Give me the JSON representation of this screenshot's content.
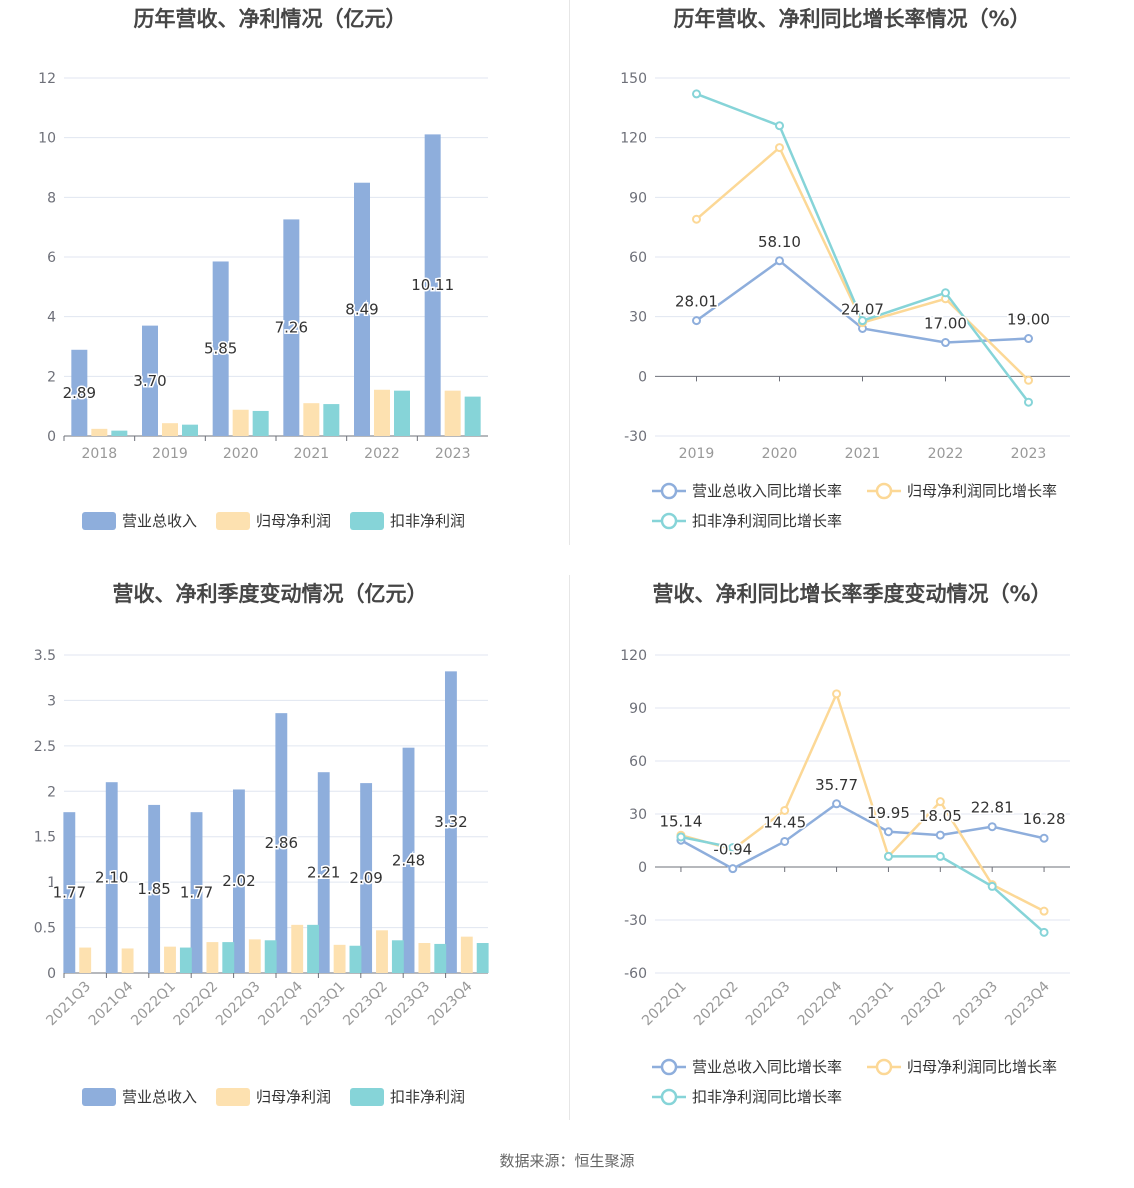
{
  "footer": {
    "source": "数据来源：恒生聚源"
  },
  "colors": {
    "revenue": "#8eaedc",
    "net_profit": "#fde1b0",
    "deducted_profit": "#86d4d8",
    "grid": "#e0e6f0",
    "axis": "#6e7079",
    "title": "#464646",
    "legend_text": "#333333"
  },
  "legend_bar": [
    "营业总收入",
    "归母净利润",
    "扣非净利润"
  ],
  "legend_line": [
    "营业总收入同比增长率",
    "归母净利润同比增长率",
    "扣非净利润同比增长率"
  ],
  "chart_data": [
    {
      "type": "bar",
      "title": "历年营收、净利情况（亿元）",
      "categories": [
        "2018",
        "2019",
        "2020",
        "2021",
        "2022",
        "2023"
      ],
      "ylim": [
        0,
        12
      ],
      "yticks": [
        0,
        2,
        4,
        6,
        8,
        10,
        12
      ],
      "ytick_labels": [
        "0",
        "2",
        "4",
        "6",
        "8",
        "10",
        "12"
      ],
      "grid": true,
      "legend": "bottom",
      "series": [
        {
          "name": "营业总收入",
          "values": [
            2.89,
            3.7,
            5.85,
            7.26,
            8.49,
            10.11
          ],
          "labels": [
            "2.89",
            "3.70",
            "5.85",
            "7.26",
            "8.49",
            "10.11"
          ]
        },
        {
          "name": "归母净利润",
          "values": [
            0.24,
            0.43,
            0.88,
            1.1,
            1.55,
            1.52
          ]
        },
        {
          "name": "扣非净利润",
          "values": [
            0.18,
            0.38,
            0.84,
            1.07,
            1.52,
            1.32
          ]
        }
      ]
    },
    {
      "type": "line",
      "title": "历年营收、净利同比增长率情况（%）",
      "categories": [
        "2019",
        "2020",
        "2021",
        "2022",
        "2023"
      ],
      "ylim": [
        -30,
        150
      ],
      "yticks": [
        -30,
        0,
        30,
        60,
        90,
        120,
        150
      ],
      "ytick_labels": [
        "-30",
        "0",
        "30",
        "60",
        "90",
        "120",
        "150"
      ],
      "grid": true,
      "legend": "bottom",
      "series": [
        {
          "name": "营业总收入同比增长率",
          "values": [
            28.01,
            58.1,
            24.07,
            17.0,
            19.0
          ],
          "labels": [
            "28.01",
            "58.10",
            "24.07",
            "17.00",
            "19.00"
          ]
        },
        {
          "name": "归母净利润同比增长率",
          "values": [
            79,
            115,
            27,
            39,
            -2
          ]
        },
        {
          "name": "扣非净利润同比增长率",
          "values": [
            142,
            126,
            28,
            42,
            -13
          ]
        }
      ]
    },
    {
      "type": "bar",
      "title": "营收、净利季度变动情况（亿元）",
      "categories": [
        "2021Q3",
        "2021Q4",
        "2022Q1",
        "2022Q2",
        "2022Q3",
        "2022Q4",
        "2023Q1",
        "2023Q2",
        "2023Q3",
        "2023Q4"
      ],
      "ylim": [
        0,
        3.5
      ],
      "yticks": [
        0,
        0.5,
        1,
        1.5,
        2,
        2.5,
        3,
        3.5
      ],
      "ytick_labels": [
        "0",
        "0.5",
        "1",
        "1.5",
        "2",
        "2.5",
        "3",
        "3.5"
      ],
      "grid": true,
      "legend": "bottom",
      "series": [
        {
          "name": "营业总收入",
          "values": [
            1.77,
            2.1,
            1.85,
            1.77,
            2.02,
            2.86,
            2.21,
            2.09,
            2.48,
            3.32
          ],
          "labels": [
            "1.77",
            "2.10",
            "1.85",
            "1.77",
            "2.02",
            "2.86",
            "2.21",
            "2.09",
            "2.48",
            "3.32"
          ]
        },
        {
          "name": "归母净利润",
          "values": [
            0.28,
            0.27,
            0.29,
            0.34,
            0.37,
            0.53,
            0.31,
            0.47,
            0.33,
            0.4
          ]
        },
        {
          "name": "扣非净利润",
          "values": [
            0.0,
            0.0,
            0.28,
            0.34,
            0.36,
            0.53,
            0.3,
            0.36,
            0.32,
            0.33
          ]
        }
      ]
    },
    {
      "type": "line",
      "title": "营收、净利同比增长率季度变动情况（%）",
      "categories": [
        "2022Q1",
        "2022Q2",
        "2022Q3",
        "2022Q4",
        "2023Q1",
        "2023Q2",
        "2023Q3",
        "2023Q4"
      ],
      "ylim": [
        -60,
        120
      ],
      "yticks": [
        -60,
        -30,
        0,
        30,
        60,
        90,
        120
      ],
      "ytick_labels": [
        "-60",
        "-30",
        "0",
        "30",
        "60",
        "90",
        "120"
      ],
      "grid": true,
      "legend": "bottom",
      "series": [
        {
          "name": "营业总收入同比增长率",
          "values": [
            15.14,
            -0.94,
            14.45,
            35.77,
            19.95,
            18.05,
            22.81,
            16.28
          ],
          "labels": [
            "15.14",
            "-0.94",
            "14.45",
            "35.77",
            "19.95",
            "18.05",
            "22.81",
            "16.28"
          ]
        },
        {
          "name": "归母净利润同比增长率",
          "values": [
            18,
            10,
            32,
            98,
            6,
            37,
            -10,
            -25
          ]
        },
        {
          "name": "扣非净利润同比增长率",
          "values": [
            17,
            11,
            null,
            null,
            6,
            6,
            -11,
            -37
          ]
        }
      ]
    }
  ]
}
